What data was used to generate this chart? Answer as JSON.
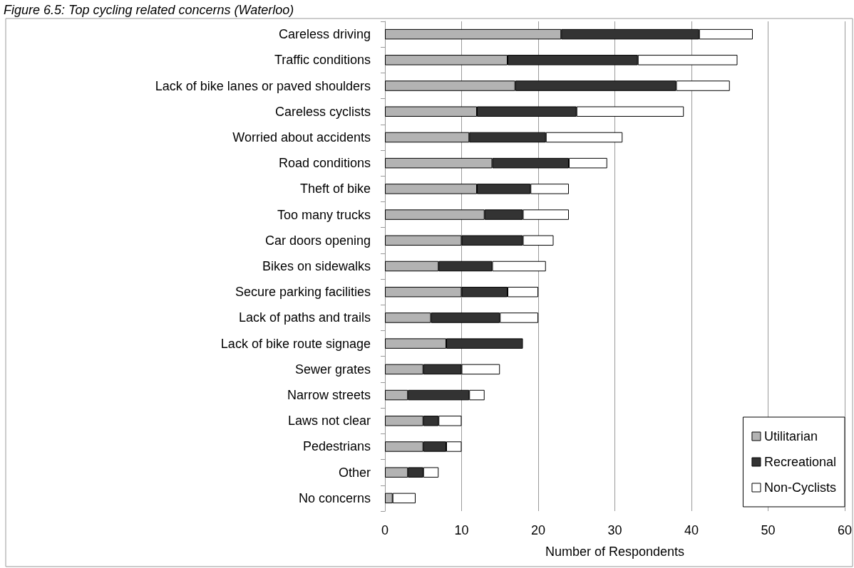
{
  "chart_data": {
    "type": "bar",
    "orientation": "horizontal",
    "stacked": true,
    "title": "Figure 6.5: Top cycling related concerns (Waterloo)",
    "xlabel": "Number of Respondents",
    "categories": [
      "Careless driving",
      "Traffic conditions",
      "Lack of bike lanes or paved shoulders",
      "Careless cyclists",
      "Worried about accidents",
      "Road conditions",
      "Theft of bike",
      "Too many trucks",
      "Car doors opening",
      "Bikes on sidewalks",
      "Secure parking facilities",
      "Lack of paths and trails",
      "Lack of bike route signage",
      "Sewer grates",
      "Narrow streets",
      "Laws not clear",
      "Pedestrians",
      "Other",
      "No concerns"
    ],
    "series": [
      {
        "name": "Utilitarian",
        "color": "#b3b3b3",
        "values": [
          23,
          16,
          17,
          12,
          11,
          14,
          12,
          13,
          10,
          7,
          10,
          6,
          8,
          5,
          3,
          5,
          5,
          3,
          1
        ]
      },
      {
        "name": "Recreational",
        "color": "#333333",
        "values": [
          18,
          17,
          21,
          13,
          10,
          10,
          7,
          5,
          8,
          7,
          6,
          9,
          10,
          5,
          8,
          2,
          3,
          2,
          0
        ]
      },
      {
        "name": "Non-Cyclists",
        "color": "#ffffff",
        "values": [
          7,
          13,
          7,
          14,
          10,
          5,
          5,
          6,
          4,
          7,
          4,
          5,
          0,
          5,
          2,
          3,
          2,
          2,
          3
        ]
      }
    ],
    "xlim": [
      0,
      60
    ],
    "xticks": [
      0,
      10,
      20,
      30,
      40,
      50,
      60
    ],
    "grid": "x",
    "legend": "bottom right"
  }
}
